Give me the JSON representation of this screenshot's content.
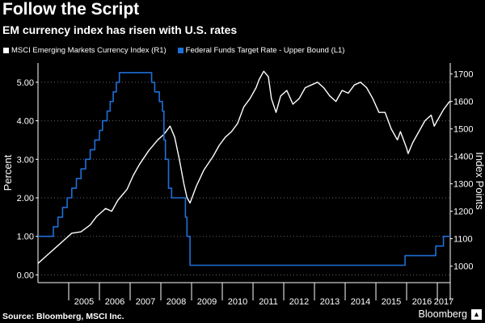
{
  "header": {
    "title": "Follow the Script",
    "subtitle": "EM currency index has risen with U.S. rates"
  },
  "footer": {
    "source": "Source: Bloomberg, MSCI Inc.",
    "brand": "Bloomberg"
  },
  "colors": {
    "background": "#000000",
    "msci_line": "#ffffff",
    "fed_line": "#1f6fd8",
    "grid": "#666666"
  },
  "chart_data": {
    "type": "line",
    "x_tick_labels": [
      "2005",
      "2006",
      "2007",
      "2008",
      "2009",
      "2010",
      "2011",
      "2012",
      "2013",
      "2014",
      "2015",
      "2016",
      "2017"
    ],
    "xlim": [
      2004.0,
      2017.42
    ],
    "left_axis": {
      "label": "Percent",
      "ylim": [
        -0.2,
        5.5
      ],
      "ticks": [
        0,
        1,
        2,
        3,
        4,
        5
      ],
      "tick_labels": [
        "0.00",
        "1.00",
        "2.00",
        "3.00",
        "4.00",
        "5.00"
      ]
    },
    "right_axis": {
      "label": "Index Points",
      "ylim": [
        940,
        1740
      ],
      "ticks": [
        1000,
        1100,
        1200,
        1300,
        1400,
        1500,
        1600,
        1700
      ],
      "tick_labels": [
        "1000",
        "1100",
        "1200",
        "1300",
        "1400",
        "1500",
        "1600",
        "1700"
      ]
    },
    "grid": "horizontal dotted",
    "legend_position": "top-left",
    "series": [
      {
        "name": "MSCI Emerging Markets Currency Index",
        "axis_tag": "(R1)",
        "axis": "right",
        "color": "#ffffff",
        "step": false,
        "points": [
          [
            2004.0,
            1010
          ],
          [
            2004.3,
            1040
          ],
          [
            2004.6,
            1070
          ],
          [
            2004.9,
            1100
          ],
          [
            2005.1,
            1120
          ],
          [
            2005.4,
            1125
          ],
          [
            2005.7,
            1150
          ],
          [
            2005.9,
            1180
          ],
          [
            2006.2,
            1210
          ],
          [
            2006.4,
            1200
          ],
          [
            2006.6,
            1240
          ],
          [
            2006.9,
            1280
          ],
          [
            2007.1,
            1330
          ],
          [
            2007.3,
            1370
          ],
          [
            2007.6,
            1420
          ],
          [
            2007.9,
            1460
          ],
          [
            2008.1,
            1480
          ],
          [
            2008.3,
            1510
          ],
          [
            2008.45,
            1470
          ],
          [
            2008.6,
            1390
          ],
          [
            2008.75,
            1300
          ],
          [
            2008.85,
            1250
          ],
          [
            2008.95,
            1230
          ],
          [
            2009.15,
            1290
          ],
          [
            2009.4,
            1350
          ],
          [
            2009.7,
            1400
          ],
          [
            2009.9,
            1440
          ],
          [
            2010.1,
            1470
          ],
          [
            2010.3,
            1490
          ],
          [
            2010.5,
            1520
          ],
          [
            2010.7,
            1580
          ],
          [
            2010.9,
            1610
          ],
          [
            2011.1,
            1650
          ],
          [
            2011.2,
            1680
          ],
          [
            2011.35,
            1710
          ],
          [
            2011.5,
            1690
          ],
          [
            2011.6,
            1610
          ],
          [
            2011.75,
            1560
          ],
          [
            2011.9,
            1620
          ],
          [
            2012.1,
            1640
          ],
          [
            2012.3,
            1590
          ],
          [
            2012.5,
            1610
          ],
          [
            2012.7,
            1650
          ],
          [
            2012.9,
            1660
          ],
          [
            2013.1,
            1670
          ],
          [
            2013.3,
            1650
          ],
          [
            2013.5,
            1620
          ],
          [
            2013.7,
            1600
          ],
          [
            2013.9,
            1640
          ],
          [
            2014.1,
            1630
          ],
          [
            2014.3,
            1660
          ],
          [
            2014.5,
            1670
          ],
          [
            2014.7,
            1650
          ],
          [
            2014.9,
            1610
          ],
          [
            2015.1,
            1560
          ],
          [
            2015.3,
            1560
          ],
          [
            2015.5,
            1500
          ],
          [
            2015.7,
            1460
          ],
          [
            2015.8,
            1490
          ],
          [
            2016.0,
            1430
          ],
          [
            2016.05,
            1410
          ],
          [
            2016.2,
            1450
          ],
          [
            2016.4,
            1490
          ],
          [
            2016.6,
            1530
          ],
          [
            2016.8,
            1550
          ],
          [
            2016.9,
            1510
          ],
          [
            2017.0,
            1530
          ],
          [
            2017.2,
            1570
          ],
          [
            2017.4,
            1600
          ]
        ]
      },
      {
        "name": "Federal Funds Target Rate - Upper Bound",
        "axis_tag": "(L1)",
        "axis": "left",
        "color": "#1f6fd8",
        "step": true,
        "points": [
          [
            2004.0,
            1.0
          ],
          [
            2004.5,
            1.25
          ],
          [
            2004.65,
            1.5
          ],
          [
            2004.8,
            1.75
          ],
          [
            2004.95,
            2.0
          ],
          [
            2005.1,
            2.25
          ],
          [
            2005.25,
            2.5
          ],
          [
            2005.4,
            2.75
          ],
          [
            2005.55,
            3.0
          ],
          [
            2005.7,
            3.25
          ],
          [
            2005.85,
            3.5
          ],
          [
            2006.0,
            3.75
          ],
          [
            2006.1,
            4.0
          ],
          [
            2006.25,
            4.25
          ],
          [
            2006.35,
            4.5
          ],
          [
            2006.45,
            4.75
          ],
          [
            2006.55,
            5.0
          ],
          [
            2006.65,
            5.25
          ],
          [
            2007.7,
            5.0
          ],
          [
            2007.8,
            4.75
          ],
          [
            2007.95,
            4.5
          ],
          [
            2008.05,
            4.25
          ],
          [
            2008.1,
            3.5
          ],
          [
            2008.15,
            3.0
          ],
          [
            2008.25,
            2.25
          ],
          [
            2008.35,
            2.0
          ],
          [
            2008.8,
            1.5
          ],
          [
            2008.85,
            1.0
          ],
          [
            2008.95,
            0.25
          ],
          [
            2015.95,
            0.5
          ],
          [
            2016.95,
            0.75
          ],
          [
            2017.2,
            1.0
          ],
          [
            2017.42,
            1.0
          ]
        ]
      }
    ]
  }
}
